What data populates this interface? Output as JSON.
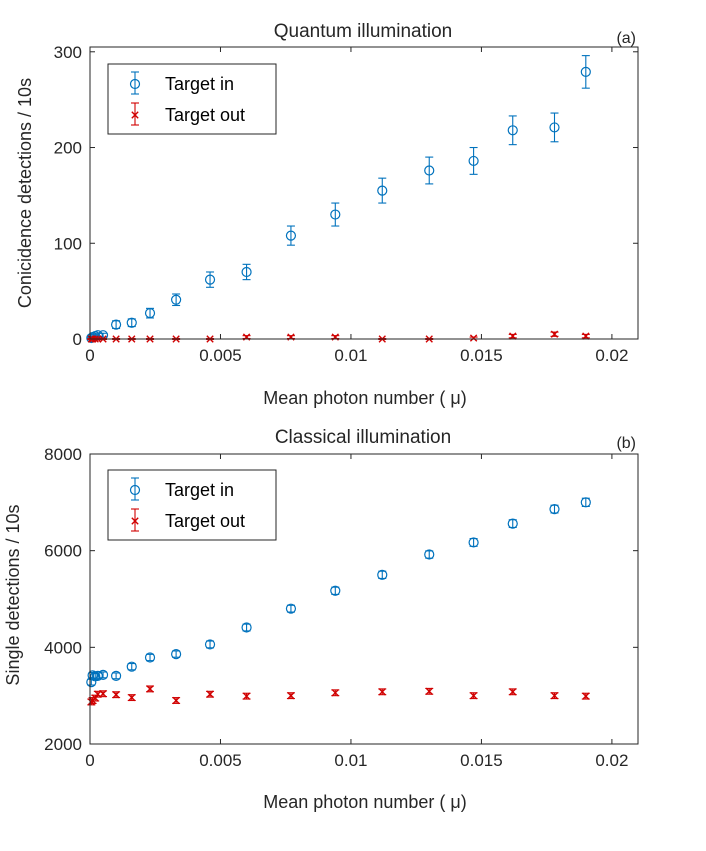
{
  "colors": {
    "target_in": "#0072BD",
    "target_out": "#D00000",
    "axis": "#262626",
    "frame": "#262626"
  },
  "chart_data": [
    {
      "type": "scatter",
      "panel_label": "(a)",
      "title": "Quantum illumination",
      "xlabel": "Mean photon number ( μ)",
      "ylabel": "Conicidence detections / 10s",
      "xlim": [
        0,
        0.021
      ],
      "ylim": [
        0,
        305
      ],
      "xticks": [
        0,
        0.005,
        0.01,
        0.015,
        0.02
      ],
      "xtick_labels": [
        "0",
        "0.005",
        "0.01",
        "0.015",
        "0.02"
      ],
      "yticks": [
        0,
        100,
        200,
        300
      ],
      "ytick_labels": [
        "0",
        "100",
        "200",
        "300"
      ],
      "legend_position": "top-left",
      "series": [
        {
          "name": "Target in",
          "marker": "circle",
          "x": [
            5e-05,
            0.0001,
            0.0002,
            0.0003,
            0.0005,
            0.001,
            0.0016,
            0.0023,
            0.0033,
            0.0046,
            0.006,
            0.0077,
            0.0094,
            0.0112,
            0.013,
            0.0147,
            0.0162,
            0.0178,
            0.019
          ],
          "y": [
            1,
            2,
            3,
            4,
            4,
            15,
            17,
            27,
            41,
            62,
            70,
            108,
            130,
            155,
            176,
            186,
            218,
            221,
            279
          ],
          "err": [
            1,
            1,
            1.5,
            2,
            2,
            4,
            4,
            5,
            6,
            8,
            8,
            10,
            12,
            13,
            14,
            14,
            15,
            15,
            17
          ]
        },
        {
          "name": "Target out",
          "marker": "x",
          "x": [
            5e-05,
            0.0001,
            0.0002,
            0.0003,
            0.0005,
            0.001,
            0.0016,
            0.0023,
            0.0033,
            0.0046,
            0.006,
            0.0077,
            0.0094,
            0.0112,
            0.013,
            0.0147,
            0.0162,
            0.0178,
            0.019
          ],
          "y": [
            0,
            0,
            0,
            0,
            0,
            0,
            0,
            0,
            0,
            0,
            2,
            2,
            2,
            0,
            0,
            1,
            3,
            5,
            3
          ],
          "err": [
            0.5,
            0.5,
            0.5,
            0.5,
            0.5,
            0.5,
            0.5,
            0.5,
            0.5,
            0.5,
            1.5,
            1.5,
            1.5,
            0.5,
            0.5,
            1,
            1.8,
            2.2,
            1.8
          ]
        }
      ]
    },
    {
      "type": "scatter",
      "panel_label": "(b)",
      "title": "Classical illumination",
      "xlabel": "Mean photon number ( μ)",
      "ylabel": "Single detections / 10s",
      "xlim": [
        0,
        0.021
      ],
      "ylim": [
        2000,
        8000
      ],
      "xticks": [
        0,
        0.005,
        0.01,
        0.015,
        0.02
      ],
      "xtick_labels": [
        "0",
        "0.005",
        "0.01",
        "0.015",
        "0.02"
      ],
      "yticks": [
        2000,
        4000,
        6000,
        8000
      ],
      "ytick_labels": [
        "2000",
        "4000",
        "6000",
        "8000"
      ],
      "legend_position": "top-left",
      "series": [
        {
          "name": "Target in",
          "marker": "circle",
          "x": [
            5e-05,
            0.0001,
            0.0002,
            0.0003,
            0.0005,
            0.001,
            0.0016,
            0.0023,
            0.0033,
            0.0046,
            0.006,
            0.0077,
            0.0094,
            0.0112,
            0.013,
            0.0147,
            0.0162,
            0.0178,
            0.019
          ],
          "y": [
            3280,
            3420,
            3400,
            3410,
            3430,
            3410,
            3600,
            3790,
            3860,
            4060,
            4410,
            4800,
            5170,
            5500,
            5920,
            6170,
            6560,
            6860,
            7000
          ],
          "err": [
            60,
            60,
            60,
            60,
            60,
            60,
            65,
            65,
            65,
            70,
            70,
            70,
            75,
            75,
            75,
            80,
            80,
            80,
            85
          ]
        },
        {
          "name": "Target out",
          "marker": "x",
          "x": [
            5e-05,
            0.0001,
            0.0002,
            0.0003,
            0.0005,
            0.001,
            0.0016,
            0.0023,
            0.0033,
            0.0046,
            0.006,
            0.0077,
            0.0094,
            0.0112,
            0.013,
            0.0147,
            0.0162,
            0.0178,
            0.019
          ],
          "y": [
            2870,
            2900,
            2950,
            3030,
            3040,
            3020,
            2960,
            3140,
            2900,
            3030,
            2990,
            3000,
            3060,
            3080,
            3090,
            3000,
            3080,
            3000,
            2990
          ],
          "err": [
            60,
            60,
            60,
            60,
            60,
            60,
            60,
            60,
            60,
            60,
            60,
            60,
            60,
            60,
            60,
            60,
            60,
            60,
            60
          ]
        }
      ]
    }
  ]
}
